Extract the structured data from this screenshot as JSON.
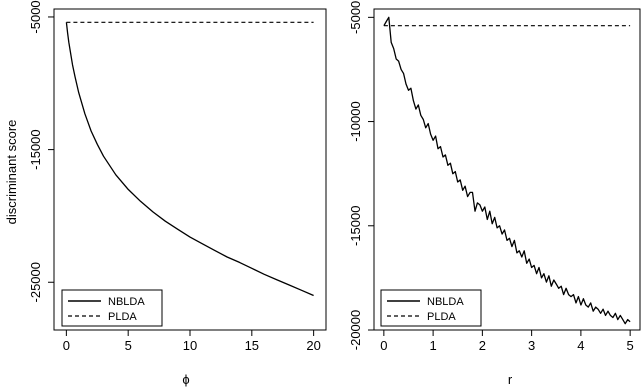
{
  "chart_data": [
    {
      "type": "line",
      "title": "",
      "xlabel": "ϕ",
      "ylabel": "discriminant score",
      "xlim": [
        -1,
        21
      ],
      "ylim": [
        -28600,
        -4400
      ],
      "xticks": [
        0,
        5,
        10,
        15,
        20
      ],
      "yticks": [
        -5000,
        -15000,
        -25000
      ],
      "grid": false,
      "legend_position": "bottom-left",
      "series": [
        {
          "name": "NBLDA",
          "style": "solid",
          "x": [
            0,
            0.1,
            0.2,
            0.3,
            0.5,
            0.7,
            1,
            1.5,
            2,
            2.5,
            3,
            4,
            5,
            6,
            7,
            8,
            9,
            10,
            11,
            12,
            13,
            14,
            15,
            16,
            17,
            18,
            19,
            20
          ],
          "y": [
            -5400,
            -6200,
            -6900,
            -7500,
            -8600,
            -9500,
            -10700,
            -12300,
            -13600,
            -14600,
            -15500,
            -16900,
            -18000,
            -18900,
            -19700,
            -20400,
            -21000,
            -21600,
            -22100,
            -22600,
            -23100,
            -23500,
            -23950,
            -24400,
            -24800,
            -25200,
            -25600,
            -26000
          ]
        },
        {
          "name": "PLDA",
          "style": "dashed",
          "x": [
            0,
            20
          ],
          "y": [
            -5400,
            -5400
          ]
        }
      ]
    },
    {
      "type": "line",
      "title": "",
      "xlabel": "r",
      "ylabel": "",
      "xlim": [
        -0.2,
        5.2
      ],
      "ylim": [
        -20000,
        -4600
      ],
      "xticks": [
        0,
        1,
        2,
        3,
        4,
        5
      ],
      "yticks": [
        -5000,
        -10000,
        -15000,
        -20000
      ],
      "grid": false,
      "legend_position": "bottom-left",
      "series": [
        {
          "name": "NBLDA",
          "style": "solid",
          "x": [
            0,
            0.05,
            0.1,
            0.15,
            0.2,
            0.25,
            0.3,
            0.35,
            0.4,
            0.45,
            0.5,
            0.55,
            0.6,
            0.65,
            0.7,
            0.75,
            0.8,
            0.85,
            0.9,
            0.95,
            1,
            1.05,
            1.1,
            1.15,
            1.2,
            1.25,
            1.3,
            1.35,
            1.4,
            1.45,
            1.5,
            1.55,
            1.6,
            1.65,
            1.7,
            1.75,
            1.8,
            1.85,
            1.9,
            1.95,
            2,
            2.05,
            2.1,
            2.15,
            2.2,
            2.25,
            2.3,
            2.35,
            2.4,
            2.45,
            2.5,
            2.55,
            2.6,
            2.65,
            2.7,
            2.75,
            2.8,
            2.85,
            2.9,
            2.95,
            3,
            3.05,
            3.1,
            3.15,
            3.2,
            3.25,
            3.3,
            3.35,
            3.4,
            3.45,
            3.5,
            3.55,
            3.6,
            3.65,
            3.7,
            3.75,
            3.8,
            3.85,
            3.9,
            3.95,
            4,
            4.05,
            4.1,
            4.15,
            4.2,
            4.25,
            4.3,
            4.35,
            4.4,
            4.45,
            4.5,
            4.55,
            4.6,
            4.65,
            4.7,
            4.75,
            4.8,
            4.85,
            4.9,
            4.95,
            5
          ],
          "y": [
            -5400,
            -5200,
            -5000,
            -6200,
            -6500,
            -7000,
            -7100,
            -7500,
            -7700,
            -8200,
            -8500,
            -8400,
            -9000,
            -9400,
            -9200,
            -9700,
            -9900,
            -10300,
            -10100,
            -10600,
            -10900,
            -10700,
            -11300,
            -11200,
            -11700,
            -11600,
            -12100,
            -12000,
            -12500,
            -12400,
            -12900,
            -12800,
            -13300,
            -13100,
            -13600,
            -13400,
            -13400,
            -14300,
            -13900,
            -14000,
            -14300,
            -14100,
            -14700,
            -14300,
            -14900,
            -14600,
            -15100,
            -15000,
            -15400,
            -15200,
            -15700,
            -15600,
            -16000,
            -15700,
            -16300,
            -16200,
            -16500,
            -16200,
            -16800,
            -16600,
            -17000,
            -16900,
            -17300,
            -17000,
            -17500,
            -17300,
            -17700,
            -17400,
            -17900,
            -17600,
            -17800,
            -18000,
            -17900,
            -18300,
            -18000,
            -18300,
            -18400,
            -18300,
            -18700,
            -18400,
            -18800,
            -18500,
            -18800,
            -18900,
            -18700,
            -19100,
            -18900,
            -19000,
            -19200,
            -19000,
            -19300,
            -19100,
            -19300,
            -19400,
            -19200,
            -19500,
            -19300,
            -19500,
            -19700,
            -19500,
            -19600
          ]
        },
        {
          "name": "PLDA",
          "style": "dashed",
          "x": [
            0,
            5
          ],
          "y": [
            -5400,
            -5400
          ]
        }
      ]
    }
  ]
}
